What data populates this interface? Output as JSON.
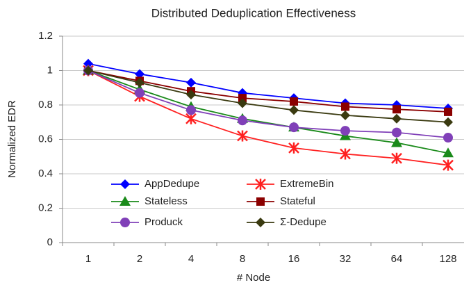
{
  "chart_data": {
    "type": "line",
    "title": "Distributed Deduplication Effectiveness",
    "xlabel": "# Node",
    "ylabel": "Normalized EDR",
    "categories": [
      "1",
      "2",
      "4",
      "8",
      "16",
      "32",
      "64",
      "128"
    ],
    "ylim": [
      0,
      1.2
    ],
    "yticks": [
      0,
      0.2,
      0.4,
      0.6,
      0.8,
      1,
      1.2
    ],
    "grid": true,
    "series": [
      {
        "name": "AppDedupe",
        "color": "#0000ff",
        "marker": "diamond",
        "values": [
          1.04,
          0.98,
          0.93,
          0.87,
          0.84,
          0.81,
          0.8,
          0.78
        ]
      },
      {
        "name": "ExtremeBin",
        "color": "#ff2020",
        "marker": "asterisk",
        "values": [
          1.0,
          0.85,
          0.72,
          0.62,
          0.55,
          0.515,
          0.49,
          0.45
        ]
      },
      {
        "name": "Stateless",
        "color": "#1a8a1a",
        "marker": "triangle",
        "values": [
          1.0,
          0.89,
          0.79,
          0.72,
          0.67,
          0.62,
          0.58,
          0.52
        ]
      },
      {
        "name": "Stateful",
        "color": "#8b0000",
        "marker": "square",
        "values": [
          1.0,
          0.94,
          0.88,
          0.84,
          0.82,
          0.79,
          0.775,
          0.76
        ]
      },
      {
        "name": "Produck",
        "color": "#8040b8",
        "marker": "circle",
        "values": [
          1.0,
          0.87,
          0.77,
          0.71,
          0.67,
          0.65,
          0.64,
          0.61
        ]
      },
      {
        "name": "Σ-Dedupe",
        "color": "#3a3a10",
        "marker": "diamond",
        "values": [
          1.0,
          0.93,
          0.86,
          0.81,
          0.77,
          0.74,
          0.72,
          0.7
        ]
      }
    ]
  }
}
